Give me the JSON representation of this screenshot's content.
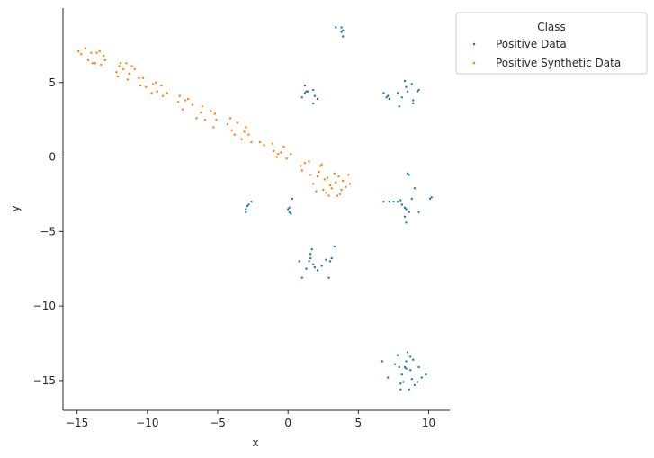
{
  "chart_data": {
    "type": "scatter",
    "xlabel": "x",
    "ylabel": "y",
    "xlim": [
      -16,
      11.5
    ],
    "ylim": [
      -17,
      10
    ],
    "xticks": [
      -15,
      -10,
      -5,
      0,
      5,
      10
    ],
    "yticks": [
      5,
      0,
      -5,
      -10,
      -15
    ],
    "xtick_labels": [
      "−15",
      "−10",
      "−5",
      "0",
      "5",
      "10"
    ],
    "ytick_labels": [
      "5",
      "0",
      "−5",
      "−10",
      "−15"
    ],
    "grid": false,
    "legend": {
      "title": "Class",
      "placement": "outside-top-right"
    },
    "series": [
      {
        "name": "Positive Data",
        "color": "#1f77b4",
        "points": [
          [
            3.4,
            8.7
          ],
          [
            3.8,
            8.7
          ],
          [
            3.9,
            8.5
          ],
          [
            3.8,
            8.4
          ],
          [
            3.9,
            8.1
          ],
          [
            1.0,
            4.0
          ],
          [
            1.2,
            4.8
          ],
          [
            1.3,
            4.4
          ],
          [
            1.4,
            4.4
          ],
          [
            1.8,
            4.5
          ],
          [
            1.9,
            4.1
          ],
          [
            1.8,
            3.6
          ],
          [
            2.1,
            3.9
          ],
          [
            1.2,
            4.3
          ],
          [
            6.8,
            4.3
          ],
          [
            7.0,
            4.0
          ],
          [
            7.1,
            4.1
          ],
          [
            7.2,
            3.9
          ],
          [
            7.8,
            4.3
          ],
          [
            7.9,
            3.4
          ],
          [
            8.1,
            4.0
          ],
          [
            8.3,
            5.1
          ],
          [
            8.5,
            4.4
          ],
          [
            8.8,
            4.9
          ],
          [
            8.9,
            3.8
          ],
          [
            8.9,
            3.6
          ],
          [
            9.2,
            4.4
          ],
          [
            9.3,
            4.5
          ],
          [
            8.4,
            4.7
          ],
          [
            -3.0,
            -3.5
          ],
          [
            -3.0,
            -3.7
          ],
          [
            -2.9,
            -3.3
          ],
          [
            -2.8,
            -3.2
          ],
          [
            -2.6,
            -3.0
          ],
          [
            0.0,
            -3.5
          ],
          [
            0.1,
            -3.7
          ],
          [
            0.1,
            -3.4
          ],
          [
            0.2,
            -3.8
          ],
          [
            0.3,
            -2.8
          ],
          [
            6.8,
            -3.0
          ],
          [
            7.2,
            -3.0
          ],
          [
            7.5,
            -3.0
          ],
          [
            7.8,
            -3.0
          ],
          [
            8.0,
            -2.9
          ],
          [
            8.1,
            -3.2
          ],
          [
            8.3,
            -3.4
          ],
          [
            8.4,
            -3.5
          ],
          [
            8.4,
            -4.4
          ],
          [
            8.5,
            -1.1
          ],
          [
            8.6,
            -1.2
          ],
          [
            8.6,
            -3.7
          ],
          [
            8.8,
            -2.8
          ],
          [
            9.0,
            -2.1
          ],
          [
            9.3,
            -3.7
          ],
          [
            10.1,
            -2.8
          ],
          [
            10.2,
            -2.7
          ],
          [
            8.3,
            -4.0
          ],
          [
            0.8,
            -7.0
          ],
          [
            1.0,
            -8.1
          ],
          [
            1.3,
            -7.5
          ],
          [
            1.5,
            -7.0
          ],
          [
            1.6,
            -6.5
          ],
          [
            1.7,
            -6.2
          ],
          [
            1.8,
            -7.2
          ],
          [
            1.9,
            -7.4
          ],
          [
            2.1,
            -7.6
          ],
          [
            2.7,
            -6.9
          ],
          [
            2.9,
            -8.1
          ],
          [
            3.0,
            -7.0
          ],
          [
            3.1,
            -6.8
          ],
          [
            3.3,
            -6.0
          ],
          [
            2.4,
            -7.3
          ],
          [
            1.6,
            -6.8
          ],
          [
            6.7,
            -13.7
          ],
          [
            7.1,
            -14.8
          ],
          [
            7.6,
            -13.9
          ],
          [
            7.8,
            -13.3
          ],
          [
            7.9,
            -14.1
          ],
          [
            8.0,
            -15.2
          ],
          [
            8.0,
            -15.6
          ],
          [
            8.1,
            -14.6
          ],
          [
            8.3,
            -14.1
          ],
          [
            8.4,
            -13.7
          ],
          [
            8.4,
            -14.2
          ],
          [
            8.5,
            -13.1
          ],
          [
            8.6,
            -15.6
          ],
          [
            8.7,
            -13.4
          ],
          [
            8.8,
            -14.9
          ],
          [
            8.9,
            -13.6
          ],
          [
            9.0,
            -15.3
          ],
          [
            9.2,
            -15.1
          ],
          [
            9.3,
            -14.1
          ],
          [
            9.5,
            -14.8
          ],
          [
            9.8,
            -14.6
          ],
          [
            8.7,
            -14.3
          ],
          [
            8.2,
            -15.1
          ]
        ]
      },
      {
        "name": "Positive Synthetic Data",
        "color": "#ff7f0e",
        "points": [
          [
            -14.9,
            7.1
          ],
          [
            -14.7,
            6.9
          ],
          [
            -14.4,
            7.3
          ],
          [
            -14.2,
            6.5
          ],
          [
            -14.0,
            7.0
          ],
          [
            -13.9,
            6.3
          ],
          [
            -13.7,
            6.3
          ],
          [
            -13.6,
            7.0
          ],
          [
            -13.4,
            7.1
          ],
          [
            -13.3,
            6.2
          ],
          [
            -13.1,
            6.8
          ],
          [
            -13.0,
            6.5
          ],
          [
            -12.2,
            5.7
          ],
          [
            -12.1,
            5.4
          ],
          [
            -12.0,
            6.1
          ],
          [
            -11.9,
            6.3
          ],
          [
            -11.7,
            5.9
          ],
          [
            -11.5,
            6.3
          ],
          [
            -11.4,
            5.2
          ],
          [
            -11.3,
            5.6
          ],
          [
            -11.1,
            6.1
          ],
          [
            -10.9,
            5.9
          ],
          [
            -10.6,
            5.3
          ],
          [
            -10.5,
            4.8
          ],
          [
            -10.3,
            5.3
          ],
          [
            -10.1,
            4.7
          ],
          [
            -9.7,
            4.3
          ],
          [
            -9.6,
            4.9
          ],
          [
            -9.4,
            5.0
          ],
          [
            -9.3,
            4.4
          ],
          [
            -9.0,
            4.8
          ],
          [
            -8.9,
            4.1
          ],
          [
            -8.6,
            4.3
          ],
          [
            -7.8,
            3.7
          ],
          [
            -7.7,
            4.1
          ],
          [
            -7.5,
            3.2
          ],
          [
            -7.3,
            3.8
          ],
          [
            -7.1,
            3.9
          ],
          [
            -6.8,
            3.5
          ],
          [
            -6.5,
            2.6
          ],
          [
            -6.2,
            3.0
          ],
          [
            -6.1,
            3.4
          ],
          [
            -5.9,
            2.5
          ],
          [
            -5.5,
            3.1
          ],
          [
            -5.3,
            2.0
          ],
          [
            -5.2,
            2.9
          ],
          [
            -5.1,
            2.5
          ],
          [
            -4.3,
            2.2
          ],
          [
            -4.1,
            2.6
          ],
          [
            -4.0,
            1.8
          ],
          [
            -3.8,
            1.5
          ],
          [
            -3.6,
            2.3
          ],
          [
            -3.3,
            1.2
          ],
          [
            -3.1,
            1.7
          ],
          [
            -3.0,
            2.0
          ],
          [
            -2.8,
            1.5
          ],
          [
            -2.6,
            1.0
          ],
          [
            -2.0,
            1.0
          ],
          [
            -1.7,
            0.8
          ],
          [
            -1.1,
            0.9
          ],
          [
            -1.0,
            0.4
          ],
          [
            -0.8,
            0.0
          ],
          [
            -0.5,
            0.3
          ],
          [
            -0.3,
            0.7
          ],
          [
            -0.1,
            -0.1
          ],
          [
            0.2,
            0.2
          ],
          [
            -0.7,
            0.2
          ],
          [
            0.9,
            -0.6
          ],
          [
            1.0,
            -0.9
          ],
          [
            1.2,
            -0.4
          ],
          [
            1.5,
            -0.3
          ],
          [
            1.6,
            -1.2
          ],
          [
            1.8,
            -1.8
          ],
          [
            2.0,
            -2.3
          ],
          [
            2.1,
            -1.3
          ],
          [
            2.2,
            -1.0
          ],
          [
            2.3,
            -0.6
          ],
          [
            2.4,
            -0.5
          ],
          [
            2.5,
            -2.2
          ],
          [
            2.6,
            -1.5
          ],
          [
            2.7,
            -2.4
          ],
          [
            2.9,
            -2.6
          ],
          [
            3.0,
            -1.9
          ],
          [
            3.1,
            -2.1
          ],
          [
            3.3,
            -1.1
          ],
          [
            3.4,
            -1.7
          ],
          [
            3.5,
            -2.6
          ],
          [
            3.6,
            -1.3
          ],
          [
            3.7,
            -2.5
          ],
          [
            3.8,
            -2.2
          ],
          [
            3.9,
            -1.6
          ],
          [
            4.1,
            -2.0
          ],
          [
            4.3,
            -1.2
          ],
          [
            4.4,
            -1.8
          ],
          [
            2.8,
            -1.4
          ]
        ]
      }
    ]
  }
}
